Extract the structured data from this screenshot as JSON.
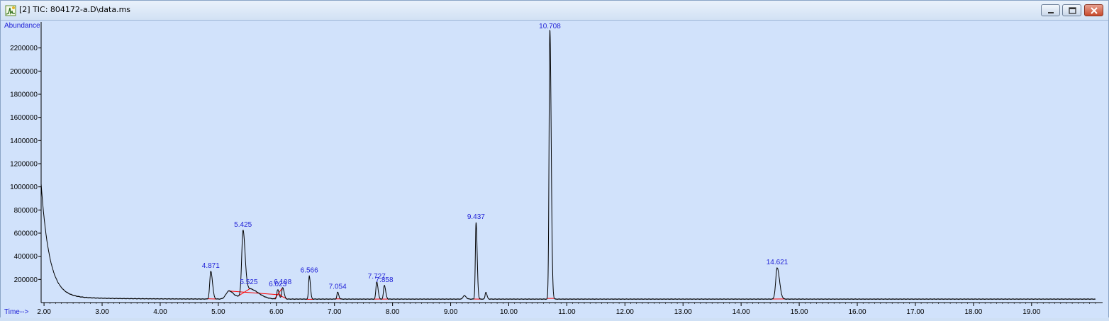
{
  "window": {
    "title": "[2] TIC: 804172-a.D\\data.ms",
    "controls": [
      "minimize",
      "maximize",
      "close"
    ],
    "icon": "chromatogram-icon"
  },
  "chart_data": {
    "type": "line",
    "ylabel": "Abundance",
    "xlabel": "Time-->",
    "xlim": [
      1.95,
      20.15
    ],
    "ylim": [
      0,
      2400000
    ],
    "y_ticks": [
      {
        "value": 200000,
        "label": "200000"
      },
      {
        "value": 400000,
        "label": "400000"
      },
      {
        "value": 600000,
        "label": "600000"
      },
      {
        "value": 800000,
        "label": "800000"
      },
      {
        "value": 1000000,
        "label": "1000000"
      },
      {
        "value": 1200000,
        "label": "1200000"
      },
      {
        "value": 1400000,
        "label": "1400000"
      },
      {
        "value": 1600000,
        "label": "1600000"
      },
      {
        "value": 1800000,
        "label": "1800000"
      },
      {
        "value": 2000000,
        "label": "2000000"
      },
      {
        "value": 2200000,
        "label": "2200000"
      }
    ],
    "x_ticks": [
      {
        "value": 2,
        "label": "2.00"
      },
      {
        "value": 3,
        "label": "3.00"
      },
      {
        "value": 4,
        "label": "4.00"
      },
      {
        "value": 5,
        "label": "5.00"
      },
      {
        "value": 6,
        "label": "6.00"
      },
      {
        "value": 7,
        "label": "7.00"
      },
      {
        "value": 8,
        "label": "8.00"
      },
      {
        "value": 9,
        "label": "9.00"
      },
      {
        "value": 10,
        "label": "10.00"
      },
      {
        "value": 11,
        "label": "11.00"
      },
      {
        "value": 12,
        "label": "12.00"
      },
      {
        "value": 13,
        "label": "13.00"
      },
      {
        "value": 14,
        "label": "14.00"
      },
      {
        "value": 15,
        "label": "15.00"
      },
      {
        "value": 16,
        "label": "16.00"
      },
      {
        "value": 17,
        "label": "17.00"
      },
      {
        "value": 18,
        "label": "18.00"
      },
      {
        "value": 19,
        "label": "19.00"
      }
    ],
    "baseline": 30000,
    "solvent_tail": {
      "start_time": 1.95,
      "start_value": 1000000,
      "decay_rate": 7.0
    },
    "peaks": [
      {
        "rt": 4.871,
        "label": "4.871",
        "height": 240000,
        "width": 0.018
      },
      {
        "rt": 5.183,
        "label": "",
        "height": 70000,
        "width": 0.05
      },
      {
        "rt": 5.425,
        "label": "5.425",
        "height": 540000,
        "width": 0.022
      },
      {
        "rt": 5.525,
        "label": "5.525",
        "height": 90000,
        "width": 0.1
      },
      {
        "rt": 6.023,
        "label": "6.023",
        "height": 80000,
        "width": 0.015
      },
      {
        "rt": 6.108,
        "label": "6.108",
        "height": 100000,
        "width": 0.015
      },
      {
        "rt": 6.566,
        "label": "6.566",
        "height": 200000,
        "width": 0.012
      },
      {
        "rt": 7.054,
        "label": "7.054",
        "height": 60000,
        "width": 0.012
      },
      {
        "rt": 7.727,
        "label": "7.727",
        "height": 150000,
        "width": 0.014
      },
      {
        "rt": 7.858,
        "label": "7.858",
        "height": 120000,
        "width": 0.014
      },
      {
        "rt": 9.232,
        "label": "",
        "height": 30000,
        "width": 0.02
      },
      {
        "rt": 9.437,
        "label": "9.437",
        "height": 660000,
        "width": 0.012
      },
      {
        "rt": 9.605,
        "label": "",
        "height": 60000,
        "width": 0.012
      },
      {
        "rt": 10.708,
        "label": "10.708",
        "height": 2330000,
        "width": 0.014
      },
      {
        "rt": 14.621,
        "label": "14.621",
        "height": 270000,
        "width": 0.025
      }
    ],
    "integration_color": "#ff0000",
    "trace_color": "#000000",
    "label_color": "#1f1fd6"
  }
}
